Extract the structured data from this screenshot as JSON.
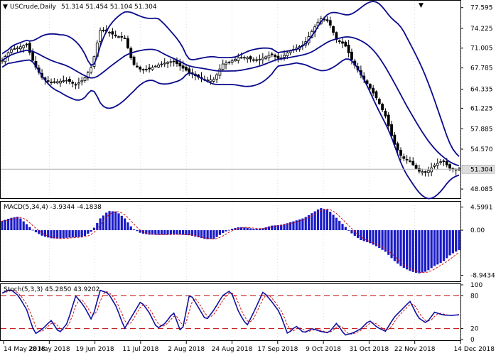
{
  "title": "USCrude,Daily",
  "ohlc_readout": "51.314 51.454 51.104 51.304",
  "last_price_label": "51.304",
  "colors": {
    "candle": "#000000",
    "bollinger": "#0a0a8c",
    "macd_hist": "#1a1ac8",
    "signal": "#d01010",
    "stoch_main": "#1010a0",
    "levels": "#c00000",
    "grid": "#c8c8c8"
  },
  "chart_data": [
    {
      "type": "candlestick",
      "panel": "price",
      "title": "USCrude,Daily",
      "y_ticks": [
        "77.595",
        "74.225",
        "71.005",
        "67.785",
        "64.335",
        "61.225",
        "57.885",
        "54.570",
        "51.304",
        "48.085"
      ],
      "ylim": [
        46.6,
        78.6
      ],
      "x_ticks": [
        "14 May 2018",
        "28 May 2018",
        "19 Jun 2018",
        "11 Jul 2018",
        "2 Aug 2018",
        "24 Aug 2018",
        "17 Sep 2018",
        "9 Oct 2018",
        "31 Oct 2018",
        "22 Nov 2018",
        "14 Dec 2018"
      ],
      "close_anchors": [
        69.0,
        70.7,
        71.1,
        71.6,
        68.2,
        66.0,
        65.4,
        65.6,
        65.8,
        65.0,
        65.9,
        68.0,
        73.9,
        73.7,
        72.9,
        72.8,
        68.5,
        67.5,
        67.6,
        68.2,
        68.6,
        68.9,
        67.9,
        67.0,
        66.3,
        65.8,
        65.9,
        68.4,
        68.8,
        69.5,
        69.5,
        68.9,
        69.4,
        70.0,
        69.2,
        70.3,
        71.0,
        71.6,
        73.8,
        75.8,
        75.4,
        72.3,
        71.6,
        68.7,
        66.6,
        64.7,
        62.6,
        59.9,
        55.6,
        53.2,
        52.6,
        51.0,
        50.8,
        52.0,
        52.7,
        51.3,
        51.304
      ],
      "series": [
        {
          "name": "Bollinger Bands",
          "values": [
            "upper",
            "middle",
            "lower"
          ]
        }
      ],
      "last_value": 51.304
    },
    {
      "type": "bar",
      "panel": "macd",
      "label": "MACD(5,34,4) -3.9344 -4.1838",
      "y_ticks": [
        "4.5991",
        "0.00",
        "-8.9434"
      ],
      "ylim": [
        -10.0,
        5.5
      ],
      "hist_anchors": [
        1.8,
        2.4,
        2.7,
        1.2,
        -0.3,
        -1.2,
        -1.6,
        -1.7,
        -1.5,
        -1.4,
        -1.3,
        -0.2,
        2.3,
        3.8,
        3.7,
        2.4,
        0.3,
        -0.6,
        -0.9,
        -0.9,
        -0.9,
        -0.8,
        -0.9,
        -1.0,
        -1.4,
        -1.8,
        -1.7,
        -0.6,
        0.2,
        0.6,
        0.5,
        0.2,
        0.4,
        0.9,
        1.0,
        1.4,
        1.9,
        2.4,
        3.4,
        4.4,
        4.0,
        2.4,
        0.8,
        -0.9,
        -2.0,
        -2.5,
        -3.3,
        -4.3,
        -6.0,
        -7.3,
        -8.1,
        -8.6,
        -8.2,
        -7.1,
        -6.3,
        -4.8,
        -3.93
      ],
      "series": [
        {
          "name": "MACD",
          "last": -3.9344
        },
        {
          "name": "Signal",
          "last": -4.1838
        }
      ]
    },
    {
      "type": "line",
      "panel": "stochastic",
      "label": "Stoch(5,3,3) 45.2850 43.9202",
      "y_ticks": [
        "100",
        "80",
        "20",
        "0"
      ],
      "levels": [
        80,
        20
      ],
      "ylim": [
        0,
        100
      ],
      "main_anchors": [
        85,
        92,
        80,
        55,
        10,
        20,
        35,
        12,
        30,
        80,
        62,
        35,
        90,
        85,
        60,
        20,
        45,
        70,
        50,
        20,
        30,
        50,
        10,
        85,
        60,
        35,
        55,
        80,
        90,
        50,
        25,
        55,
        88,
        70,
        50,
        10,
        25,
        12,
        20,
        15,
        12,
        30,
        8,
        12,
        20,
        35,
        22,
        15,
        40,
        55,
        70,
        40,
        30,
        50,
        45,
        44,
        45.285
      ],
      "series": [
        {
          "name": "%K",
          "last": 45.285
        },
        {
          "name": "%D",
          "last": 43.9202
        }
      ]
    }
  ]
}
